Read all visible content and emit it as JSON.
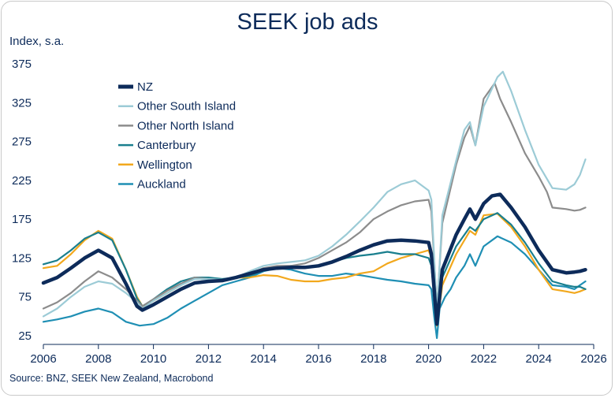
{
  "chart_data": {
    "type": "line",
    "title": "SEEK job ads",
    "ylabel": "Index, s.a.",
    "xlabel": "",
    "source": "Source: BNZ, SEEK New Zealand, Macrobond",
    "xlim": [
      2006,
      2026
    ],
    "ylim": [
      25,
      375
    ],
    "x_ticks": [
      2006,
      2008,
      2010,
      2012,
      2014,
      2016,
      2018,
      2020,
      2022,
      2024,
      2026
    ],
    "y_ticks": [
      25,
      75,
      125,
      175,
      225,
      275,
      325,
      375
    ],
    "grid": false,
    "legend_position": "top-left",
    "series": [
      {
        "name": "Auckland",
        "color": "#1f8fb4",
        "points": [
          [
            2006,
            43
          ],
          [
            2006.5,
            46
          ],
          [
            2007,
            50
          ],
          [
            2007.5,
            56
          ],
          [
            2008,
            60
          ],
          [
            2008.5,
            55
          ],
          [
            2009,
            43
          ],
          [
            2009.5,
            38
          ],
          [
            2010,
            40
          ],
          [
            2010.5,
            48
          ],
          [
            2011,
            60
          ],
          [
            2011.5,
            70
          ],
          [
            2012,
            80
          ],
          [
            2012.5,
            90
          ],
          [
            2013,
            95
          ],
          [
            2013.5,
            100
          ],
          [
            2014,
            108
          ],
          [
            2014.5,
            112
          ],
          [
            2015,
            110
          ],
          [
            2015.5,
            105
          ],
          [
            2016,
            102
          ],
          [
            2016.5,
            102
          ],
          [
            2017,
            105
          ],
          [
            2017.5,
            103
          ],
          [
            2018,
            100
          ],
          [
            2018.5,
            97
          ],
          [
            2019,
            95
          ],
          [
            2019.5,
            92
          ],
          [
            2020,
            90
          ],
          [
            2020.1,
            85
          ],
          [
            2020.2,
            50
          ],
          [
            2020.3,
            22
          ],
          [
            2020.4,
            60
          ],
          [
            2020.6,
            75
          ],
          [
            2020.8,
            85
          ],
          [
            2021,
            100
          ],
          [
            2021.3,
            115
          ],
          [
            2021.5,
            130
          ],
          [
            2021.7,
            115
          ],
          [
            2022,
            140
          ],
          [
            2022.5,
            153
          ],
          [
            2023,
            145
          ],
          [
            2023.5,
            130
          ],
          [
            2024,
            110
          ],
          [
            2024.5,
            90
          ],
          [
            2025,
            88
          ],
          [
            2025.3,
            85
          ],
          [
            2025.5,
            90
          ],
          [
            2025.7,
            95
          ]
        ]
      },
      {
        "name": "Wellington",
        "color": "#f2a81d",
        "points": [
          [
            2006,
            112
          ],
          [
            2006.5,
            115
          ],
          [
            2007,
            130
          ],
          [
            2007.5,
            148
          ],
          [
            2008,
            160
          ],
          [
            2008.5,
            150
          ],
          [
            2009,
            110
          ],
          [
            2009.4,
            75
          ],
          [
            2009.6,
            63
          ],
          [
            2010,
            70
          ],
          [
            2010.5,
            80
          ],
          [
            2011,
            90
          ],
          [
            2011.5,
            100
          ],
          [
            2012,
            98
          ],
          [
            2012.5,
            95
          ],
          [
            2013,
            100
          ],
          [
            2013.5,
            100
          ],
          [
            2014,
            103
          ],
          [
            2014.5,
            102
          ],
          [
            2015,
            97
          ],
          [
            2015.5,
            95
          ],
          [
            2016,
            95
          ],
          [
            2016.5,
            98
          ],
          [
            2017,
            100
          ],
          [
            2017.5,
            105
          ],
          [
            2018,
            108
          ],
          [
            2018.5,
            118
          ],
          [
            2019,
            125
          ],
          [
            2019.5,
            130
          ],
          [
            2020,
            135
          ],
          [
            2020.1,
            125
          ],
          [
            2020.3,
            38
          ],
          [
            2020.5,
            90
          ],
          [
            2021,
            130
          ],
          [
            2021.5,
            160
          ],
          [
            2021.7,
            155
          ],
          [
            2022,
            180
          ],
          [
            2022.5,
            182
          ],
          [
            2023,
            165
          ],
          [
            2023.5,
            140
          ],
          [
            2024,
            110
          ],
          [
            2024.5,
            85
          ],
          [
            2025,
            82
          ],
          [
            2025.3,
            80
          ],
          [
            2025.5,
            82
          ],
          [
            2025.7,
            85
          ]
        ]
      },
      {
        "name": "Canterbury",
        "color": "#1a7f8e",
        "points": [
          [
            2006,
            117
          ],
          [
            2006.5,
            122
          ],
          [
            2007,
            135
          ],
          [
            2007.5,
            150
          ],
          [
            2008,
            158
          ],
          [
            2008.5,
            148
          ],
          [
            2009,
            110
          ],
          [
            2009.4,
            73
          ],
          [
            2009.6,
            63
          ],
          [
            2010,
            72
          ],
          [
            2010.5,
            85
          ],
          [
            2011,
            95
          ],
          [
            2011.5,
            100
          ],
          [
            2012,
            100
          ],
          [
            2012.5,
            98
          ],
          [
            2013,
            100
          ],
          [
            2013.5,
            102
          ],
          [
            2014,
            110
          ],
          [
            2014.5,
            112
          ],
          [
            2015,
            115
          ],
          [
            2015.5,
            113
          ],
          [
            2016,
            115
          ],
          [
            2016.5,
            120
          ],
          [
            2017,
            125
          ],
          [
            2017.5,
            128
          ],
          [
            2018,
            130
          ],
          [
            2018.5,
            133
          ],
          [
            2019,
            130
          ],
          [
            2019.5,
            130
          ],
          [
            2020,
            125
          ],
          [
            2020.1,
            115
          ],
          [
            2020.3,
            40
          ],
          [
            2020.5,
            100
          ],
          [
            2021,
            140
          ],
          [
            2021.5,
            165
          ],
          [
            2021.7,
            160
          ],
          [
            2022,
            175
          ],
          [
            2022.5,
            183
          ],
          [
            2023,
            168
          ],
          [
            2023.5,
            145
          ],
          [
            2024,
            118
          ],
          [
            2024.5,
            95
          ],
          [
            2025,
            90
          ],
          [
            2025.3,
            88
          ],
          [
            2025.5,
            88
          ],
          [
            2025.7,
            85
          ]
        ]
      },
      {
        "name": "Other North Island",
        "color": "#8c8c8c",
        "points": [
          [
            2006,
            60
          ],
          [
            2006.5,
            68
          ],
          [
            2007,
            80
          ],
          [
            2007.5,
            95
          ],
          [
            2008,
            108
          ],
          [
            2008.5,
            100
          ],
          [
            2009,
            85
          ],
          [
            2009.4,
            70
          ],
          [
            2009.6,
            63
          ],
          [
            2010,
            72
          ],
          [
            2010.5,
            83
          ],
          [
            2011,
            92
          ],
          [
            2011.5,
            100
          ],
          [
            2012,
            98
          ],
          [
            2012.5,
            97
          ],
          [
            2013,
            100
          ],
          [
            2013.5,
            105
          ],
          [
            2014,
            112
          ],
          [
            2014.5,
            115
          ],
          [
            2015,
            115
          ],
          [
            2015.5,
            118
          ],
          [
            2016,
            125
          ],
          [
            2016.5,
            135
          ],
          [
            2017,
            145
          ],
          [
            2017.5,
            158
          ],
          [
            2018,
            175
          ],
          [
            2018.5,
            185
          ],
          [
            2019,
            193
          ],
          [
            2019.5,
            198
          ],
          [
            2020,
            200
          ],
          [
            2020.1,
            185
          ],
          [
            2020.3,
            60
          ],
          [
            2020.5,
            170
          ],
          [
            2021,
            245
          ],
          [
            2021.3,
            280
          ],
          [
            2021.5,
            295
          ],
          [
            2021.7,
            270
          ],
          [
            2022,
            330
          ],
          [
            2022.4,
            350
          ],
          [
            2022.6,
            330
          ],
          [
            2023,
            300
          ],
          [
            2023.5,
            260
          ],
          [
            2024,
            230
          ],
          [
            2024.3,
            210
          ],
          [
            2024.5,
            190
          ],
          [
            2025,
            188
          ],
          [
            2025.3,
            186
          ],
          [
            2025.5,
            187
          ],
          [
            2025.7,
            190
          ]
        ]
      },
      {
        "name": "Other South Island",
        "color": "#9ccbd6",
        "points": [
          [
            2006,
            50
          ],
          [
            2006.5,
            60
          ],
          [
            2007,
            75
          ],
          [
            2007.5,
            88
          ],
          [
            2008,
            95
          ],
          [
            2008.5,
            92
          ],
          [
            2009,
            80
          ],
          [
            2009.4,
            68
          ],
          [
            2009.6,
            60
          ],
          [
            2010,
            70
          ],
          [
            2010.5,
            80
          ],
          [
            2011,
            90
          ],
          [
            2011.5,
            98
          ],
          [
            2012,
            98
          ],
          [
            2012.5,
            97
          ],
          [
            2013,
            100
          ],
          [
            2013.5,
            108
          ],
          [
            2014,
            115
          ],
          [
            2014.5,
            118
          ],
          [
            2015,
            120
          ],
          [
            2015.5,
            122
          ],
          [
            2016,
            128
          ],
          [
            2016.5,
            140
          ],
          [
            2017,
            155
          ],
          [
            2017.5,
            172
          ],
          [
            2018,
            190
          ],
          [
            2018.5,
            210
          ],
          [
            2019,
            220
          ],
          [
            2019.5,
            225
          ],
          [
            2020,
            212
          ],
          [
            2020.1,
            200
          ],
          [
            2020.3,
            55
          ],
          [
            2020.5,
            180
          ],
          [
            2021,
            250
          ],
          [
            2021.3,
            290
          ],
          [
            2021.5,
            300
          ],
          [
            2021.7,
            270
          ],
          [
            2022,
            320
          ],
          [
            2022.5,
            358
          ],
          [
            2022.7,
            365
          ],
          [
            2023,
            340
          ],
          [
            2023.5,
            290
          ],
          [
            2024,
            245
          ],
          [
            2024.5,
            215
          ],
          [
            2025,
            213
          ],
          [
            2025.3,
            220
          ],
          [
            2025.5,
            232
          ],
          [
            2025.7,
            252
          ]
        ]
      },
      {
        "name": "NZ",
        "color": "#0d2b5a",
        "points": [
          [
            2006,
            93
          ],
          [
            2006.5,
            100
          ],
          [
            2007,
            112
          ],
          [
            2007.5,
            125
          ],
          [
            2008,
            135
          ],
          [
            2008.5,
            125
          ],
          [
            2009,
            92
          ],
          [
            2009.4,
            63
          ],
          [
            2009.6,
            58
          ],
          [
            2010,
            65
          ],
          [
            2010.5,
            75
          ],
          [
            2011,
            85
          ],
          [
            2011.5,
            93
          ],
          [
            2012,
            95
          ],
          [
            2012.5,
            96
          ],
          [
            2013,
            100
          ],
          [
            2013.5,
            105
          ],
          [
            2014,
            110
          ],
          [
            2014.5,
            112
          ],
          [
            2015,
            113
          ],
          [
            2015.5,
            113
          ],
          [
            2016,
            115
          ],
          [
            2016.5,
            120
          ],
          [
            2017,
            127
          ],
          [
            2017.5,
            135
          ],
          [
            2018,
            142
          ],
          [
            2018.5,
            147
          ],
          [
            2019,
            148
          ],
          [
            2019.5,
            147
          ],
          [
            2020,
            145
          ],
          [
            2020.1,
            130
          ],
          [
            2020.3,
            40
          ],
          [
            2020.5,
            110
          ],
          [
            2021,
            155
          ],
          [
            2021.3,
            175
          ],
          [
            2021.5,
            188
          ],
          [
            2021.7,
            175
          ],
          [
            2022,
            195
          ],
          [
            2022.3,
            205
          ],
          [
            2022.6,
            207
          ],
          [
            2023,
            190
          ],
          [
            2023.5,
            165
          ],
          [
            2024,
            135
          ],
          [
            2024.5,
            110
          ],
          [
            2025,
            106
          ],
          [
            2025.3,
            107
          ],
          [
            2025.5,
            108
          ],
          [
            2025.7,
            110
          ]
        ]
      }
    ],
    "legend_order": [
      "NZ",
      "Other South Island",
      "Other North Island",
      "Canterbury",
      "Wellington",
      "Auckland"
    ]
  }
}
